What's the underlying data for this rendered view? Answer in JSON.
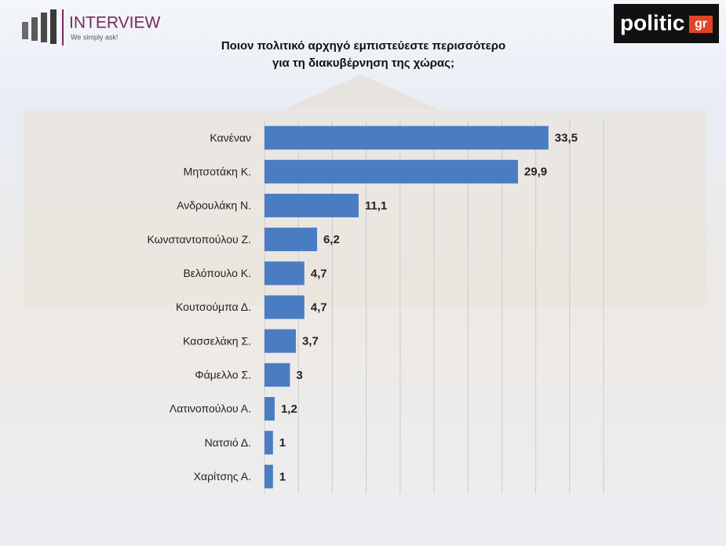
{
  "branding": {
    "left_logo": "INTERVIEW",
    "left_tagline": "We simply ask!",
    "right_logo": "politic",
    "right_logo_suffix": "gr"
  },
  "chart_data": {
    "type": "bar",
    "orientation": "horizontal",
    "title": [
      "Ποιον πολιτικό αρχηγό εμπιστεύεστε περισσότερο",
      "για τη διακυβέρνηση της χώρας;"
    ],
    "categories": [
      "Κανέναν",
      "Μητσοτάκη Κ.",
      "Ανδρουλάκη Ν.",
      "Κωνσταντοπούλου Ζ.",
      "Βελόπουλο Κ.",
      "Κουτσούμπα Δ.",
      "Κασσελάκη Σ.",
      "Φάμελλο Σ.",
      "Λατινοπούλου Α.",
      "Νατσιό Δ.",
      "Χαρίτσης Α."
    ],
    "values": [
      33.5,
      29.9,
      11.1,
      6.2,
      4.7,
      4.7,
      3.7,
      3,
      1.2,
      1,
      1
    ],
    "value_labels": [
      "33,5",
      "29,9",
      "11,1",
      "6,2",
      "4,7",
      "4,7",
      "3,7",
      "3",
      "1,2",
      "1",
      "1"
    ],
    "color": "#4a7cc1",
    "xlim": [
      0,
      40
    ],
    "xticks": [
      0,
      4,
      8,
      12,
      16,
      20,
      24,
      28,
      32,
      36,
      40
    ],
    "grid": true
  }
}
